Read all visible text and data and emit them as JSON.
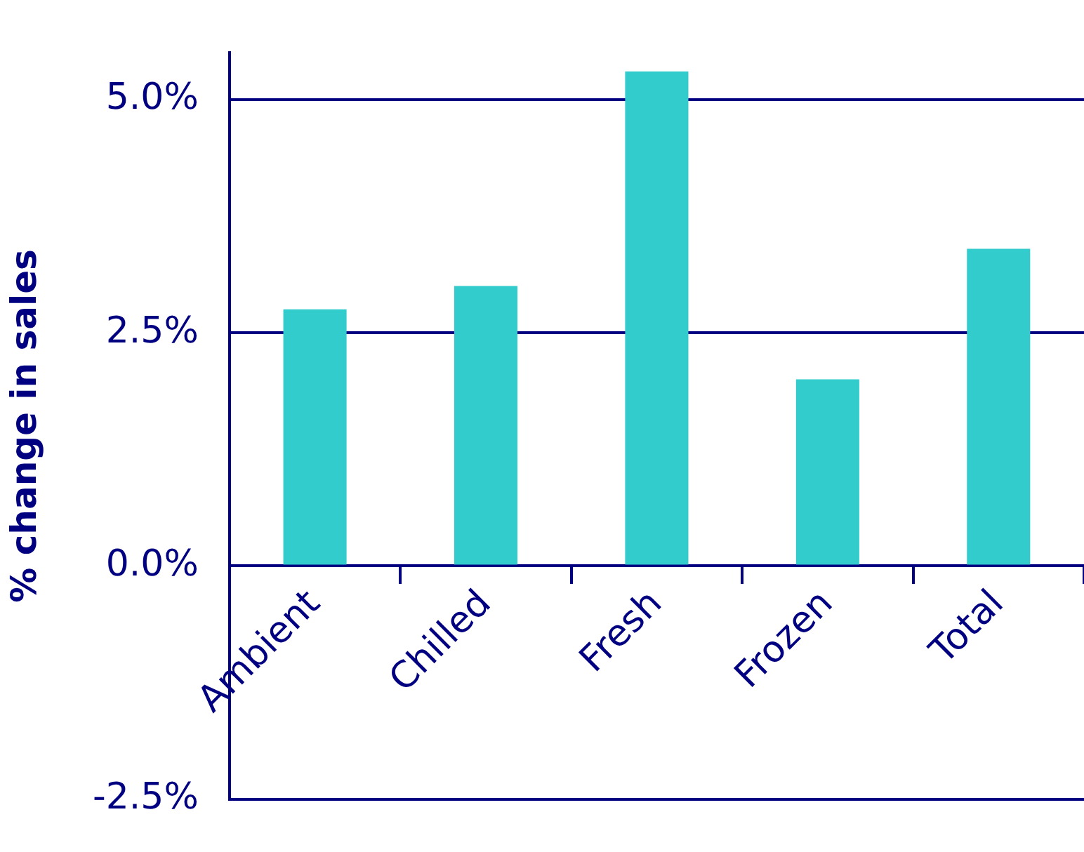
{
  "chart_data": {
    "type": "bar",
    "ylabel": "% change in sales",
    "categories": [
      "Ambient",
      "Chilled",
      "Fresh",
      "Frozen",
      "Total"
    ],
    "values": [
      2.75,
      3.0,
      5.3,
      2.0,
      3.4
    ],
    "color": "#33cccc",
    "ylim": [
      -2.5,
      5.5
    ],
    "yticks": [
      {
        "value": -2.5,
        "label": "-2.5%"
      },
      {
        "value": 0,
        "label": "0.0%"
      },
      {
        "value": 2.5,
        "label": "2.5%"
      },
      {
        "value": 5,
        "label": "5.0%"
      }
    ],
    "grid": "y",
    "legend": false
  }
}
